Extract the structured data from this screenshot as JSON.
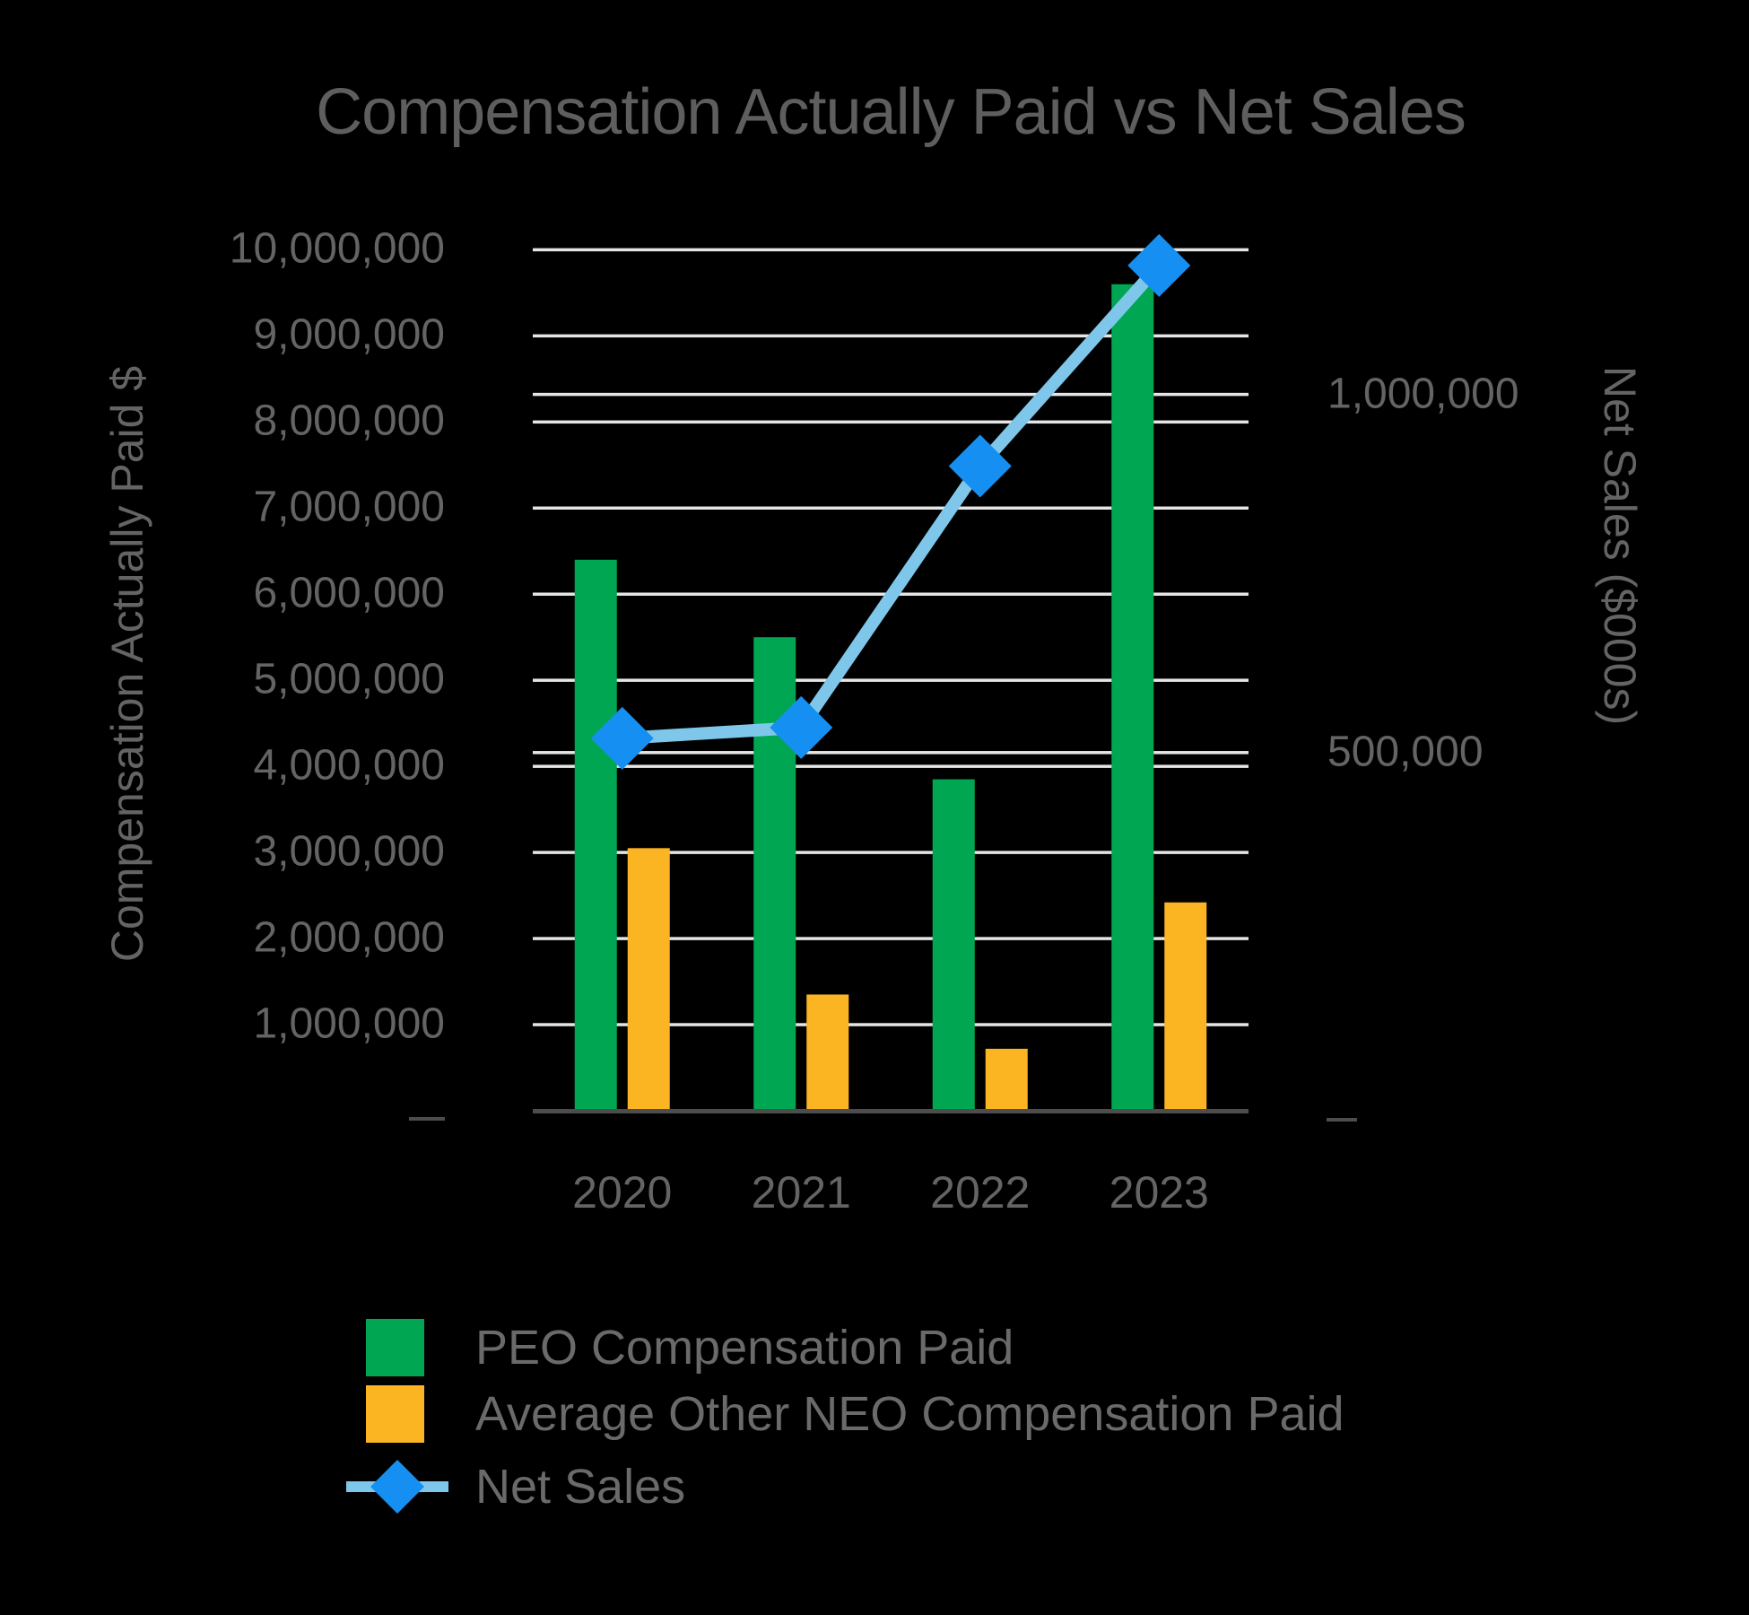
{
  "title": "Compensation Actually Paid vs Net Sales",
  "colors": {
    "background": "#000000",
    "green": "#00A651",
    "yellow": "#FBB422",
    "line_blue": "#7FC7EA",
    "marker_blue": "#1590F2",
    "grid": "#E5E5E5",
    "axis_line": "#4D4D4D",
    "text": "#646464",
    "title_text": "#5E5E5E"
  },
  "legend": {
    "position": "bottom-left",
    "items": [
      {
        "label": "PEO Compensation Paid",
        "swatch": "green-bar"
      },
      {
        "label": "Average Other NEO Compensation Paid",
        "swatch": "yellow-bar"
      },
      {
        "label": "Net Sales",
        "swatch": "blue-line-diamond"
      }
    ]
  },
  "chart_data": {
    "type": "bar",
    "title": "Compensation Actually Paid vs Net Sales",
    "categories": [
      "2020",
      "2021",
      "2022",
      "2023"
    ],
    "series": [
      {
        "name": "PEO Compensation Paid",
        "kind": "bar",
        "axis": "left",
        "color_key": "green",
        "values": [
          6400000,
          5500000,
          3850000,
          9600000
        ]
      },
      {
        "name": "Average Other NEO Compensation Paid",
        "kind": "bar",
        "axis": "left",
        "color_key": "yellow",
        "values": [
          3050000,
          1350000,
          720000,
          2420000
        ]
      },
      {
        "name": "Net Sales",
        "kind": "line",
        "axis": "right",
        "color_key": "line_blue",
        "marker_color_key": "marker_blue",
        "values": [
          520000,
          535000,
          900000,
          1180000
        ]
      }
    ],
    "left_axis": {
      "title": "Compensation Actually Paid $",
      "range": [
        0,
        10400000
      ],
      "tick_values": [
        1000000,
        2000000,
        3000000,
        4000000,
        5000000,
        6000000,
        7000000,
        8000000,
        9000000,
        10000000
      ],
      "tick_labels": [
        "1,000,000",
        "2,000,000",
        "3,000,000",
        "4,000,000",
        "5,000,000",
        "6,000,000",
        "7,000,000",
        "8,000,000",
        "9,000,000",
        "10,000,000"
      ],
      "zero_label": "—"
    },
    "right_axis": {
      "title": "Net Sales ($000s)",
      "range": [
        0,
        1250000
      ],
      "tick_values": [
        500000,
        1000000
      ],
      "tick_labels": [
        "500,000",
        "1,000,000"
      ],
      "zero_label": "—"
    },
    "x_axis": {
      "labels": [
        "2020",
        "2021",
        "2022",
        "2023"
      ]
    },
    "grid": true,
    "legend_position": "bottom-left"
  }
}
